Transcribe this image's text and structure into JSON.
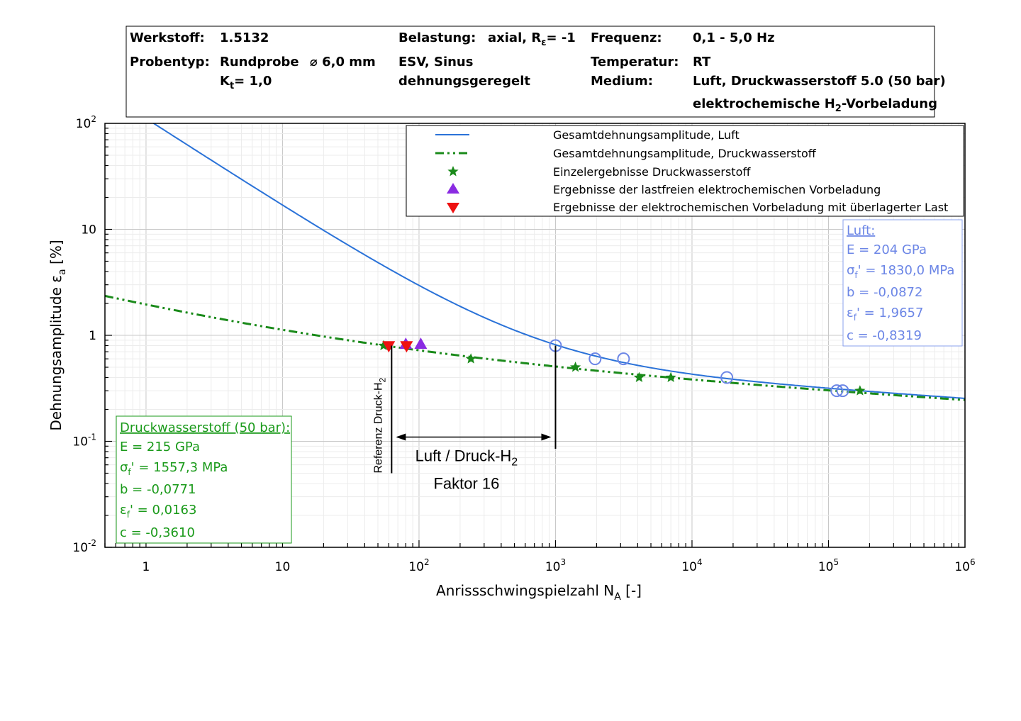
{
  "header": {
    "werkstoff_label": "Werkstoff:",
    "werkstoff_value": "1.5132",
    "probentyp_label": "Probentyp:",
    "probentyp_value": "Rundprobe",
    "durchmesser": "⌀ 6,0 mm",
    "kt_prefix": "K",
    "kt_sub": "t",
    "kt_suffix": "= 1,0",
    "belastung_label": "Belastung:",
    "belastung_value_prefix": "axial, R",
    "belastung_value_sub": "ε",
    "belastung_value_suffix": "= -1",
    "esv": "ESV, Sinus",
    "geregelt": "dehnungsgeregelt",
    "frequenz_label": "Frequenz:",
    "frequenz_value": "0,1 - 5,0 Hz",
    "temperatur_label": "Temperatur:",
    "temperatur_value": "RT",
    "medium_label": "Medium:",
    "medium_value": "Luft, Druckwasserstoff 5.0 (50 bar)",
    "medium_value2_prefix": "elektrochemische H",
    "medium_value2_sub": "2",
    "medium_value2_suffix": "-Vorbeladung"
  },
  "chart_data": {
    "type": "line",
    "xlabel_prefix": "Anrissschwingspielzahl N",
    "xlabel_sub": "A",
    "xlabel_suffix": " [-]",
    "ylabel_prefix": "Dehnungsamplitude ε",
    "ylabel_sub": "a",
    "ylabel_suffix": " [%]",
    "xscale": "log",
    "yscale": "log",
    "xlim": [
      0.5,
      1000000
    ],
    "ylim": [
      0.01,
      100
    ],
    "grid": true,
    "x_ticks": [
      {
        "value": 1,
        "label": "1",
        "exp": ""
      },
      {
        "value": 10,
        "label": "10",
        "exp": ""
      },
      {
        "value": 100,
        "label": "10",
        "exp": "2"
      },
      {
        "value": 1000,
        "label": "10",
        "exp": "3"
      },
      {
        "value": 10000,
        "label": "10",
        "exp": "4"
      },
      {
        "value": 100000,
        "label": "10",
        "exp": "5"
      },
      {
        "value": 1000000,
        "label": "10",
        "exp": "6"
      }
    ],
    "y_ticks": [
      {
        "value": 0.01,
        "label": "10",
        "exp": "-2"
      },
      {
        "value": 0.1,
        "label": "10",
        "exp": "-1"
      },
      {
        "value": 1,
        "label": "1",
        "exp": ""
      },
      {
        "value": 10,
        "label": "10",
        "exp": ""
      },
      {
        "value": 100,
        "label": "10",
        "exp": "2"
      }
    ],
    "legend_position": "top-right",
    "legend": [
      {
        "label": "Gesamtdehnungsamplitude, Luft",
        "marker": "line",
        "color": "#2a72d8"
      },
      {
        "label": "Gesamtdehnungsamplitude, Druckwasserstoff",
        "marker": "dashdot",
        "color": "#1a8a1a"
      },
      {
        "label": "Einzelergebnisse Druckwasserstoff",
        "marker": "star",
        "color": "#1a8a1a"
      },
      {
        "label": "Ergebnisse der lastfreien elektrochemischen Vorbeladung",
        "marker": "triangle-up",
        "color": "#8a2be2"
      },
      {
        "label": "Ergebnisse der elektrochemischen Vorbeladung mit überlagerter Last",
        "marker": "triangle-down",
        "color": "#ee1111"
      }
    ],
    "curves": [
      {
        "name": "Gesamtdehnungsamplitude, Luft",
        "color": "#2a72d8",
        "style": "solid",
        "E_GPa": 204,
        "sigma_f_MPa": 1830.0,
        "b": -0.0872,
        "eps_f": 1.9657,
        "c": -0.8319
      },
      {
        "name": "Gesamtdehnungsamplitude, Druckwasserstoff",
        "color": "#1a8a1a",
        "style": "dashdot",
        "E_GPa": 215,
        "sigma_f_MPa": 1557.3,
        "b": -0.0771,
        "eps_f": 0.0163,
        "c": -0.361
      }
    ],
    "points": {
      "luft_circles": [
        [
          1000,
          0.8
        ],
        [
          1950,
          0.6
        ],
        [
          3150,
          0.6
        ],
        [
          18000,
          0.4
        ],
        [
          115000,
          0.3
        ],
        [
          127000,
          0.3
        ]
      ],
      "h2_stars": [
        [
          55,
          0.8
        ],
        [
          240,
          0.6
        ],
        [
          1400,
          0.5
        ],
        [
          4100,
          0.4
        ],
        [
          7000,
          0.4
        ],
        [
          170000,
          0.3
        ]
      ],
      "lastfrei_triangles": [
        [
          80,
          0.83
        ],
        [
          103,
          0.83
        ]
      ],
      "last_triangles": [
        [
          60,
          0.79
        ],
        [
          81,
          0.79
        ]
      ]
    },
    "annotations": {
      "reference_x": 63,
      "luft_x": 1000,
      "arrow_y": 0.1,
      "reference_label_prefix": "Referenz Druck-H",
      "reference_label_sub": "2",
      "ratio_label_prefix": "Luft / Druck-H",
      "ratio_label_sub": "2",
      "factor_label": "Faktor 16"
    },
    "luft_box": {
      "title": "Luft:",
      "E": "E = 204 GPa",
      "sigma_prefix": "σ",
      "sigma_sub": "f",
      "sigma_suffix": "' = 1830,0 MPa",
      "b": "b = -0,0872",
      "eps_prefix": "ε",
      "eps_sub": "f",
      "eps_suffix": "' = 1,9657",
      "c": "c = -0,8319"
    },
    "h2_box": {
      "title": "Druckwasserstoff (50 bar):",
      "E": "E = 215 GPa",
      "sigma_prefix": "σ",
      "sigma_sub": "f",
      "sigma_suffix": "' = 1557,3 MPa",
      "b": "b = -0,0771",
      "eps_prefix": "ε",
      "eps_sub": "f",
      "eps_suffix": "' = 0,0163",
      "c": "c = -0,3610"
    }
  }
}
